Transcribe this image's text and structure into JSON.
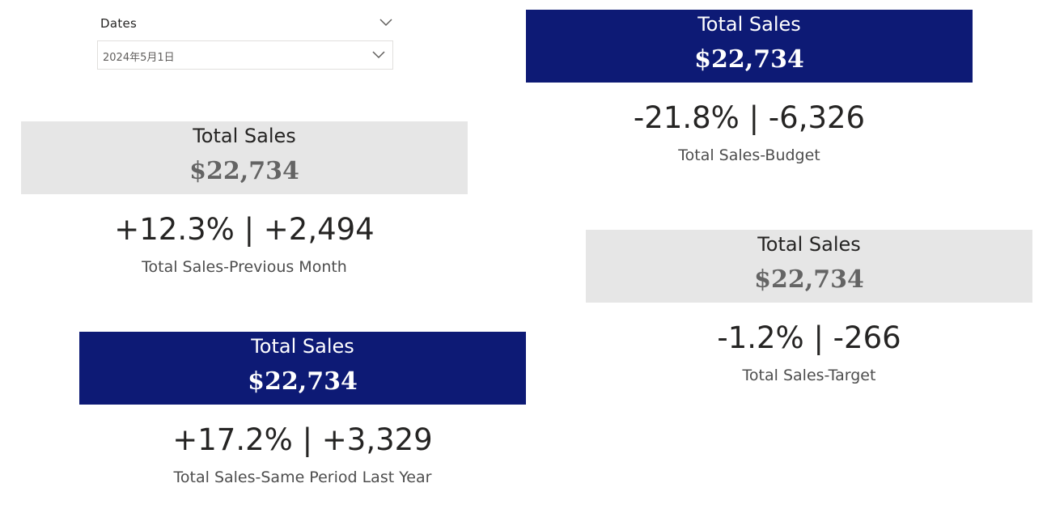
{
  "slicer": {
    "title": "Dates",
    "selected_value": "2024年5月1日",
    "collapse_icon": "chevron-down-icon",
    "dropdown_icon": "chevron-down-icon"
  },
  "colors": {
    "navy_card": "#0d1a75",
    "grey_card": "#e6e6e6",
    "text_dark": "#252423",
    "grey_value_text": "#646464"
  },
  "kpis": {
    "budget": {
      "card_title": "Total Sales",
      "card_value": "$22,734",
      "delta": "-21.8% | -6,326",
      "label": "Total Sales-Budget"
    },
    "previous_month": {
      "card_title": "Total Sales",
      "card_value": "$22,734",
      "delta": "+12.3% | +2,494",
      "label": "Total Sales-Previous Month"
    },
    "target": {
      "card_title": "Total Sales",
      "card_value": "$22,734",
      "delta": "-1.2% | -266",
      "label": "Total Sales-Target"
    },
    "same_period_last_year": {
      "card_title": "Total Sales",
      "card_value": "$22,734",
      "delta": "+17.2% | +3,329",
      "label": "Total Sales-Same Period Last Year"
    }
  }
}
